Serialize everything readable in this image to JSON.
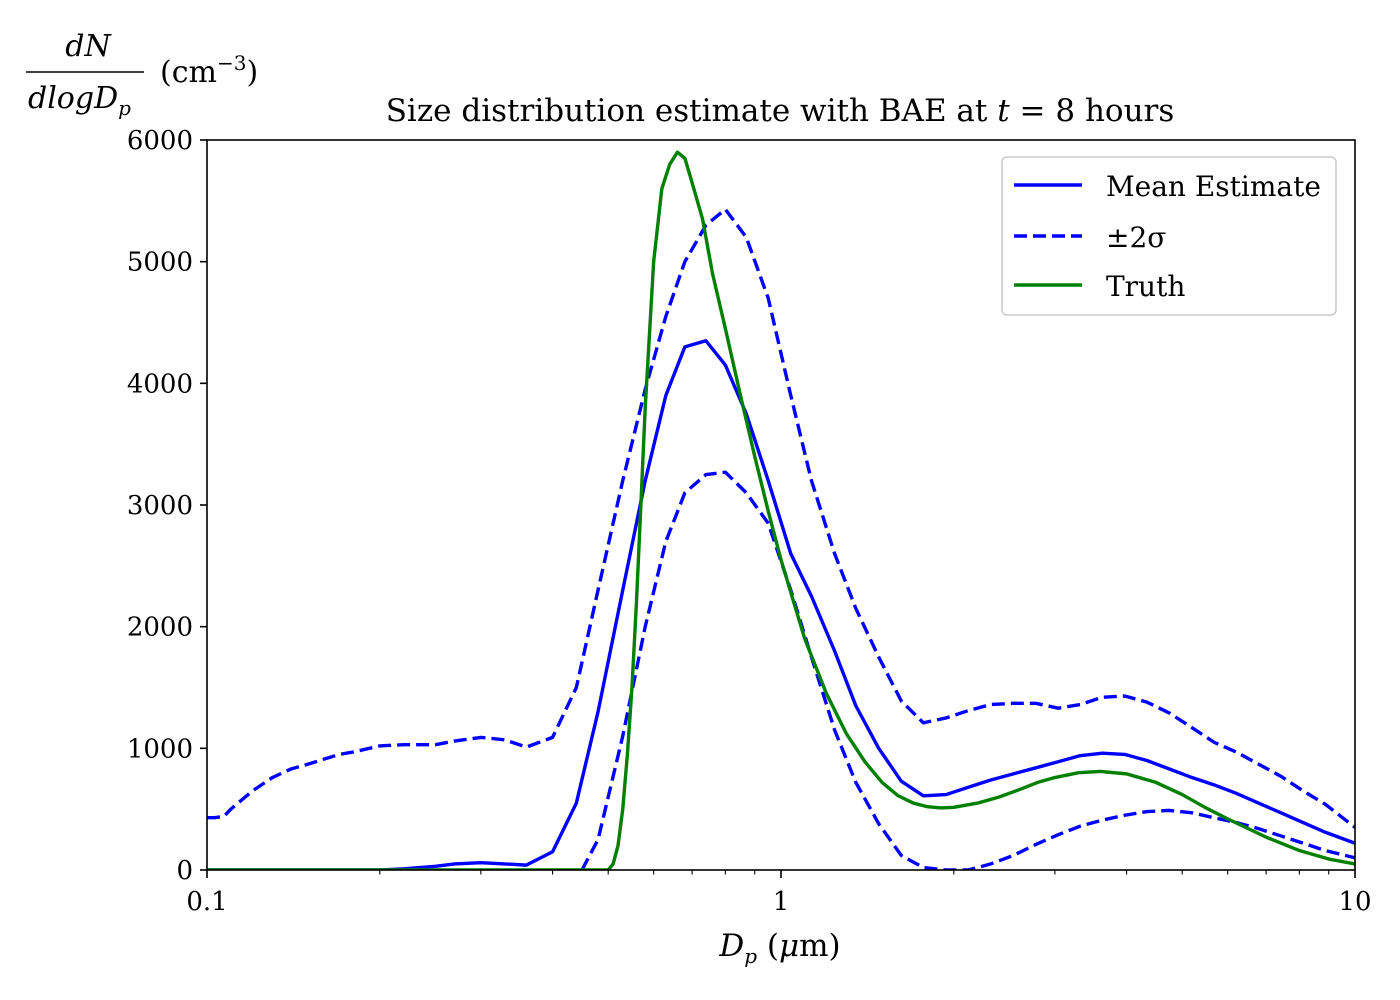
{
  "chart_data": {
    "type": "line",
    "title": "Size distribution estimate with BAE at t = 8 hours",
    "xlabel": "Dp (μm)",
    "ylabel": "dN/dlogDp (cm^-3)",
    "xscale": "log",
    "xlim": [
      0.1,
      10
    ],
    "ylim": [
      0,
      6000
    ],
    "xticks": [
      {
        "value": 0.1,
        "label": "0.1"
      },
      {
        "value": 1,
        "label": "1"
      },
      {
        "value": 10,
        "label": "10"
      }
    ],
    "yticks": [
      {
        "value": 0,
        "label": "0"
      },
      {
        "value": 1000,
        "label": "1000"
      },
      {
        "value": 2000,
        "label": "2000"
      },
      {
        "value": 3000,
        "label": "3000"
      },
      {
        "value": 4000,
        "label": "4000"
      },
      {
        "value": 5000,
        "label": "5000"
      },
      {
        "value": 6000,
        "label": "6000"
      }
    ],
    "legend_position": "top-right",
    "grid": false,
    "series": [
      {
        "name": "Mean Estimate",
        "color": "#0000ff",
        "style": "solid",
        "legend": true,
        "x": [
          0.1,
          0.15,
          0.2,
          0.22,
          0.25,
          0.27,
          0.3,
          0.33,
          0.36,
          0.4,
          0.44,
          0.48,
          0.53,
          0.58,
          0.63,
          0.68,
          0.74,
          0.8,
          0.87,
          0.95,
          1.04,
          1.13,
          1.24,
          1.35,
          1.48,
          1.62,
          1.77,
          1.94,
          2.12,
          2.32,
          2.54,
          2.78,
          3.04,
          3.32,
          3.63,
          3.97,
          4.34,
          4.75,
          5.2,
          5.68,
          6.21,
          6.79,
          7.43,
          8.12,
          8.88,
          10
        ],
        "y": [
          0,
          0,
          0,
          10,
          30,
          50,
          60,
          50,
          40,
          150,
          550,
          1300,
          2300,
          3200,
          3900,
          4300,
          4350,
          4150,
          3750,
          3200,
          2600,
          2250,
          1800,
          1350,
          1000,
          730,
          610,
          620,
          680,
          740,
          790,
          840,
          890,
          940,
          960,
          950,
          900,
          830,
          760,
          700,
          630,
          550,
          470,
          390,
          310,
          220
        ]
      },
      {
        "name": "±2σ",
        "color": "#0000ff",
        "style": "dashed",
        "legend": true,
        "x": [
          0.1,
          0.103,
          0.107,
          0.11,
          0.12,
          0.13,
          0.14,
          0.15,
          0.17,
          0.18,
          0.2,
          0.22,
          0.25,
          0.27,
          0.3,
          0.33,
          0.36,
          0.4,
          0.44,
          0.48,
          0.53,
          0.58,
          0.63,
          0.68,
          0.74,
          0.8,
          0.87,
          0.95,
          1.04,
          1.13,
          1.24,
          1.35,
          1.48,
          1.62,
          1.77,
          1.94,
          2.12,
          2.32,
          2.54,
          2.78,
          3.04,
          3.32,
          3.63,
          3.97,
          4.34,
          4.75,
          5.2,
          5.68,
          6.21,
          6.79,
          7.43,
          8.12,
          8.88,
          10
        ],
        "y": [
          430,
          430,
          440,
          500,
          650,
          760,
          830,
          870,
          950,
          970,
          1020,
          1030,
          1030,
          1060,
          1090,
          1070,
          1010,
          1090,
          1500,
          2300,
          3200,
          3950,
          4550,
          5000,
          5300,
          5430,
          5200,
          4700,
          3900,
          3200,
          2600,
          2150,
          1750,
          1390,
          1210,
          1250,
          1310,
          1360,
          1370,
          1370,
          1330,
          1360,
          1420,
          1430,
          1380,
          1290,
          1170,
          1050,
          970,
          870,
          770,
          650,
          540,
          350
        ]
      },
      {
        "name": "±2σ lower",
        "color": "#0000ff",
        "style": "dashed",
        "legend": false,
        "x": [
          0.45,
          0.48,
          0.5,
          0.53,
          0.58,
          0.63,
          0.68,
          0.74,
          0.8,
          0.87,
          0.95,
          1.04,
          1.13,
          1.24,
          1.35,
          1.48,
          1.62,
          1.77,
          1.94,
          2.12,
          2.32,
          2.54,
          2.78,
          3.04,
          3.32,
          3.63,
          3.97,
          4.34,
          4.75,
          5.2,
          5.68,
          6.21,
          6.79,
          7.43,
          8.12,
          8.88,
          10
        ],
        "y": [
          0,
          250,
          600,
          1100,
          2000,
          2700,
          3100,
          3250,
          3270,
          3100,
          2850,
          2300,
          1750,
          1150,
          720,
          380,
          120,
          20,
          0,
          0,
          50,
          120,
          210,
          290,
          360,
          410,
          450,
          480,
          490,
          470,
          430,
          390,
          340,
          280,
          220,
          160,
          100
        ]
      },
      {
        "name": "Truth",
        "color": "#008000",
        "style": "solid",
        "legend": true,
        "x": [
          0.1,
          0.2,
          0.3,
          0.4,
          0.45,
          0.5,
          0.51,
          0.52,
          0.53,
          0.54,
          0.55,
          0.56,
          0.57,
          0.58,
          0.6,
          0.62,
          0.64,
          0.66,
          0.68,
          0.7,
          0.73,
          0.76,
          0.8,
          0.85,
          0.9,
          0.95,
          1.0,
          1.1,
          1.2,
          1.3,
          1.4,
          1.5,
          1.6,
          1.7,
          1.8,
          1.9,
          2.0,
          2.2,
          2.4,
          2.6,
          2.8,
          3.0,
          3.3,
          3.6,
          4.0,
          4.5,
          5.0,
          5.5,
          6.0,
          7.0,
          8.0,
          9.0,
          10
        ],
        "y": [
          0,
          0,
          0,
          0,
          0,
          0,
          50,
          200,
          500,
          950,
          1500,
          2200,
          3000,
          3800,
          5000,
          5600,
          5800,
          5900,
          5850,
          5650,
          5350,
          4900,
          4450,
          3900,
          3400,
          2950,
          2550,
          1900,
          1450,
          1120,
          890,
          720,
          610,
          550,
          520,
          510,
          515,
          550,
          600,
          660,
          720,
          760,
          800,
          810,
          790,
          720,
          620,
          510,
          420,
          270,
          160,
          90,
          50
        ]
      }
    ]
  }
}
